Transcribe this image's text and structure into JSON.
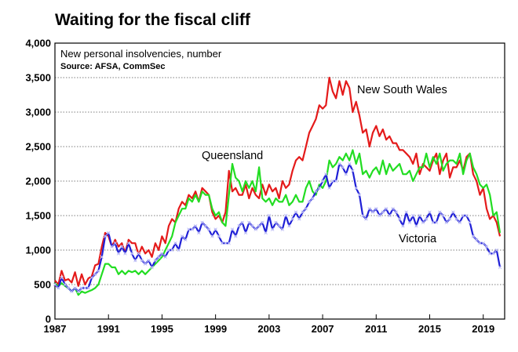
{
  "chart_data": {
    "type": "line",
    "title": "Waiting for the fiscal cliff",
    "subtitle": "New personal insolvencies, number",
    "source": "Source: AFSA, CommSec",
    "xlabel": "",
    "ylabel": "",
    "ylim": [
      0,
      4000
    ],
    "xlim": [
      1987,
      2020.6
    ],
    "grid": true,
    "legend": "inline labels",
    "y_ticks": [
      0,
      500,
      1000,
      1500,
      2000,
      2500,
      3000,
      3500,
      4000
    ],
    "y_tick_labels": [
      "0",
      "500",
      "1,000",
      "1,500",
      "2,000",
      "2,500",
      "3,000",
      "3,500",
      "4,000"
    ],
    "x_ticks": [
      1987,
      1991,
      1995,
      1999,
      2003,
      2007,
      2011,
      2015,
      2019
    ],
    "x_tick_labels": [
      "1987",
      "1991",
      "1995",
      "1999",
      "2003",
      "2007",
      "2011",
      "2015",
      "2019"
    ],
    "series": [
      {
        "name": "New South Wales",
        "color": "#e41a1a",
        "x": [
          1987.0,
          1987.25,
          1987.5,
          1987.75,
          1988.0,
          1988.25,
          1988.5,
          1988.75,
          1989.0,
          1989.25,
          1989.5,
          1989.75,
          1990.0,
          1990.25,
          1990.5,
          1990.75,
          1991.0,
          1991.25,
          1991.5,
          1991.75,
          1992.0,
          1992.25,
          1992.5,
          1992.75,
          1993.0,
          1993.25,
          1993.5,
          1993.75,
          1994.0,
          1994.25,
          1994.5,
          1994.75,
          1995.0,
          1995.25,
          1995.5,
          1995.75,
          1996.0,
          1996.25,
          1996.5,
          1996.75,
          1997.0,
          1997.25,
          1997.5,
          1997.75,
          1998.0,
          1998.25,
          1998.5,
          1998.75,
          1999.0,
          1999.25,
          1999.5,
          1999.75,
          2000.0,
          2000.25,
          2000.5,
          2000.75,
          2001.0,
          2001.25,
          2001.5,
          2001.75,
          2002.0,
          2002.25,
          2002.5,
          2002.75,
          2003.0,
          2003.25,
          2003.5,
          2003.75,
          2004.0,
          2004.25,
          2004.5,
          2004.75,
          2005.0,
          2005.25,
          2005.5,
          2005.75,
          2006.0,
          2006.25,
          2006.5,
          2006.75,
          2007.0,
          2007.25,
          2007.5,
          2007.75,
          2008.0,
          2008.25,
          2008.5,
          2008.75,
          2009.0,
          2009.25,
          2009.5,
          2009.75,
          2010.0,
          2010.25,
          2010.5,
          2010.75,
          2011.0,
          2011.25,
          2011.5,
          2011.75,
          2012.0,
          2012.25,
          2012.5,
          2012.75,
          2013.0,
          2013.25,
          2013.5,
          2013.75,
          2014.0,
          2014.25,
          2014.5,
          2014.75,
          2015.0,
          2015.25,
          2015.5,
          2015.75,
          2016.0,
          2016.25,
          2016.5,
          2016.75,
          2017.0,
          2017.25,
          2017.5,
          2017.75,
          2018.0,
          2018.25,
          2018.5,
          2018.75,
          2019.0,
          2019.25,
          2019.5,
          2019.75,
          2020.0,
          2020.25
        ],
        "values": [
          560,
          500,
          700,
          560,
          580,
          530,
          680,
          480,
          650,
          500,
          590,
          620,
          780,
          800,
          1050,
          1250,
          1200,
          1050,
          1150,
          1050,
          1100,
          960,
          1150,
          1100,
          1100,
          930,
          1050,
          950,
          1000,
          900,
          1100,
          1000,
          1200,
          1100,
          1350,
          1450,
          1400,
          1600,
          1700,
          1650,
          1800,
          1750,
          1850,
          1700,
          1900,
          1850,
          1800,
          1550,
          1450,
          1500,
          1400,
          1550,
          2150,
          1850,
          1900,
          1800,
          1800,
          1950,
          1750,
          1900,
          1800,
          1750,
          1950,
          1800,
          1950,
          1850,
          1900,
          1750,
          2000,
          1900,
          1950,
          2150,
          2300,
          2350,
          2300,
          2500,
          2700,
          2800,
          2900,
          3100,
          3050,
          3100,
          3500,
          3300,
          3200,
          3450,
          3250,
          3450,
          3350,
          3000,
          3150,
          2950,
          2700,
          2750,
          2500,
          2700,
          2800,
          2650,
          2750,
          2600,
          2650,
          2550,
          2550,
          2450,
          2450,
          2400,
          2350,
          2250,
          2400,
          2100,
          2250,
          2200,
          2150,
          2300,
          2400,
          2100,
          2300,
          2400,
          2050,
          2200,
          2200,
          2300,
          2150,
          2350,
          2400,
          2100,
          2000,
          1800,
          1900,
          1600,
          1450,
          1500,
          1400,
          1200
        ]
      },
      {
        "name": "Queensland",
        "color": "#22dd22",
        "x": [
          1987.0,
          1987.25,
          1987.5,
          1987.75,
          1988.0,
          1988.25,
          1988.5,
          1988.75,
          1989.0,
          1989.25,
          1989.5,
          1989.75,
          1990.0,
          1990.25,
          1990.5,
          1990.75,
          1991.0,
          1991.25,
          1991.5,
          1991.75,
          1992.0,
          1992.25,
          1992.5,
          1992.75,
          1993.0,
          1993.25,
          1993.5,
          1993.75,
          1994.0,
          1994.25,
          1994.5,
          1994.75,
          1995.0,
          1995.25,
          1995.5,
          1995.75,
          1996.0,
          1996.25,
          1996.5,
          1996.75,
          1997.0,
          1997.25,
          1997.5,
          1997.75,
          1998.0,
          1998.25,
          1998.5,
          1998.75,
          1999.0,
          1999.25,
          1999.5,
          1999.75,
          2000.0,
          2000.25,
          2000.5,
          2000.75,
          2001.0,
          2001.25,
          2001.5,
          2001.75,
          2002.0,
          2002.25,
          2002.5,
          2002.75,
          2003.0,
          2003.25,
          2003.5,
          2003.75,
          2004.0,
          2004.25,
          2004.5,
          2004.75,
          2005.0,
          2005.25,
          2005.5,
          2005.75,
          2006.0,
          2006.25,
          2006.5,
          2006.75,
          2007.0,
          2007.25,
          2007.5,
          2007.75,
          2008.0,
          2008.25,
          2008.5,
          2008.75,
          2009.0,
          2009.25,
          2009.5,
          2009.75,
          2010.0,
          2010.25,
          2010.5,
          2010.75,
          2011.0,
          2011.25,
          2011.5,
          2011.75,
          2012.0,
          2012.25,
          2012.5,
          2012.75,
          2013.0,
          2013.25,
          2013.5,
          2013.75,
          2014.0,
          2014.25,
          2014.5,
          2014.75,
          2015.0,
          2015.25,
          2015.5,
          2015.75,
          2016.0,
          2016.25,
          2016.5,
          2016.75,
          2017.0,
          2017.25,
          2017.5,
          2017.75,
          2018.0,
          2018.25,
          2018.5,
          2018.75,
          2019.0,
          2019.25,
          2019.5,
          2019.75,
          2020.0,
          2020.25
        ],
        "values": [
          520,
          480,
          520,
          480,
          450,
          400,
          450,
          350,
          400,
          380,
          400,
          420,
          450,
          500,
          650,
          800,
          800,
          750,
          750,
          650,
          700,
          650,
          700,
          680,
          700,
          650,
          700,
          650,
          700,
          750,
          800,
          850,
          900,
          1000,
          1100,
          1200,
          1400,
          1500,
          1600,
          1600,
          1750,
          1700,
          1800,
          1700,
          1850,
          1800,
          1800,
          1600,
          1500,
          1550,
          1400,
          1350,
          1800,
          2250,
          2050,
          2000,
          1850,
          2000,
          1900,
          2000,
          1850,
          2200,
          1750,
          1700,
          1750,
          1650,
          1750,
          1700,
          1700,
          1800,
          1650,
          1700,
          1800,
          1700,
          1700,
          1900,
          2000,
          1850,
          1800,
          1950,
          1900,
          2000,
          2300,
          2200,
          2250,
          2350,
          2300,
          2400,
          2300,
          2450,
          2250,
          2400,
          2100,
          2150,
          2050,
          2150,
          2200,
          2100,
          2300,
          2100,
          2250,
          2150,
          2200,
          2250,
          2100,
          2100,
          2150,
          2000,
          2100,
          2200,
          2200,
          2400,
          2200,
          2350,
          2250,
          2400,
          2150,
          2250,
          2300,
          2300,
          2250,
          2400,
          2100,
          2300,
          2400,
          2200,
          2100,
          1950,
          1900,
          1950,
          1800,
          1500,
          1550,
          1250
        ]
      },
      {
        "name": "Victoria",
        "color": "#1f1fd6",
        "x": [
          1987.0,
          1987.25,
          1987.5,
          1987.75,
          1988.0,
          1988.25,
          1988.5,
          1988.75,
          1989.0,
          1989.25,
          1989.5,
          1989.75,
          1990.0,
          1990.25,
          1990.5,
          1990.75,
          1991.0,
          1991.25,
          1991.5,
          1991.75,
          1992.0,
          1992.25,
          1992.5,
          1992.75,
          1993.0,
          1993.25,
          1993.5,
          1993.75,
          1994.0,
          1994.25,
          1994.5,
          1994.75,
          1995.0,
          1995.25,
          1995.5,
          1995.75,
          1996.0,
          1996.25,
          1996.5,
          1996.75,
          1997.0,
          1997.25,
          1997.5,
          1997.75,
          1998.0,
          1998.25,
          1998.5,
          1998.75,
          1999.0,
          1999.25,
          1999.5,
          1999.75,
          2000.0,
          2000.25,
          2000.5,
          2000.75,
          2001.0,
          2001.25,
          2001.5,
          2001.75,
          2002.0,
          2002.25,
          2002.5,
          2002.75,
          2003.0,
          2003.25,
          2003.5,
          2003.75,
          2004.0,
          2004.25,
          2004.5,
          2004.75,
          2005.0,
          2005.25,
          2005.5,
          2005.75,
          2006.0,
          2006.25,
          2006.5,
          2006.75,
          2007.0,
          2007.25,
          2007.5,
          2007.75,
          2008.0,
          2008.25,
          2008.5,
          2008.75,
          2009.0,
          2009.25,
          2009.5,
          2009.75,
          2010.0,
          2010.25,
          2010.5,
          2010.75,
          2011.0,
          2011.25,
          2011.5,
          2011.75,
          2012.0,
          2012.25,
          2012.5,
          2012.75,
          2013.0,
          2013.25,
          2013.5,
          2013.75,
          2014.0,
          2014.25,
          2014.5,
          2014.75,
          2015.0,
          2015.25,
          2015.5,
          2015.75,
          2016.0,
          2016.25,
          2016.5,
          2016.75,
          2017.0,
          2017.25,
          2017.5,
          2017.75,
          2018.0,
          2018.25,
          2018.5,
          2018.75,
          2019.0,
          2019.25,
          2019.5,
          2019.75,
          2020.0,
          2020.25
        ],
        "values": [
          500,
          450,
          600,
          500,
          450,
          400,
          450,
          400,
          450,
          450,
          450,
          600,
          650,
          700,
          900,
          1200,
          1250,
          1050,
          1100,
          950,
          1050,
          950,
          1100,
          950,
          850,
          950,
          850,
          800,
          850,
          750,
          850,
          900,
          950,
          900,
          1000,
          1000,
          1100,
          1000,
          1200,
          1150,
          1300,
          1300,
          1350,
          1250,
          1400,
          1350,
          1300,
          1200,
          1300,
          1200,
          1100,
          1100,
          1100,
          1300,
          1200,
          1350,
          1400,
          1250,
          1400,
          1350,
          1300,
          1350,
          1400,
          1250,
          1500,
          1300,
          1400,
          1350,
          1300,
          1500,
          1350,
          1450,
          1550,
          1450,
          1550,
          1600,
          1700,
          1750,
          1850,
          1900,
          2000,
          2100,
          1900,
          2000,
          2000,
          2250,
          2200,
          2100,
          2250,
          2150,
          1900,
          1800,
          1500,
          1450,
          1600,
          1550,
          1600,
          1500,
          1550,
          1600,
          1500,
          1600,
          1550,
          1450,
          1350,
          1550,
          1400,
          1500,
          1350,
          1500,
          1400,
          1450,
          1550,
          1400,
          1400,
          1550,
          1500,
          1400,
          1450,
          1550,
          1450,
          1400,
          1500,
          1500,
          1400,
          1200,
          1150,
          1100,
          1100,
          1050,
          950,
          950,
          1000,
          750
        ]
      }
    ]
  }
}
